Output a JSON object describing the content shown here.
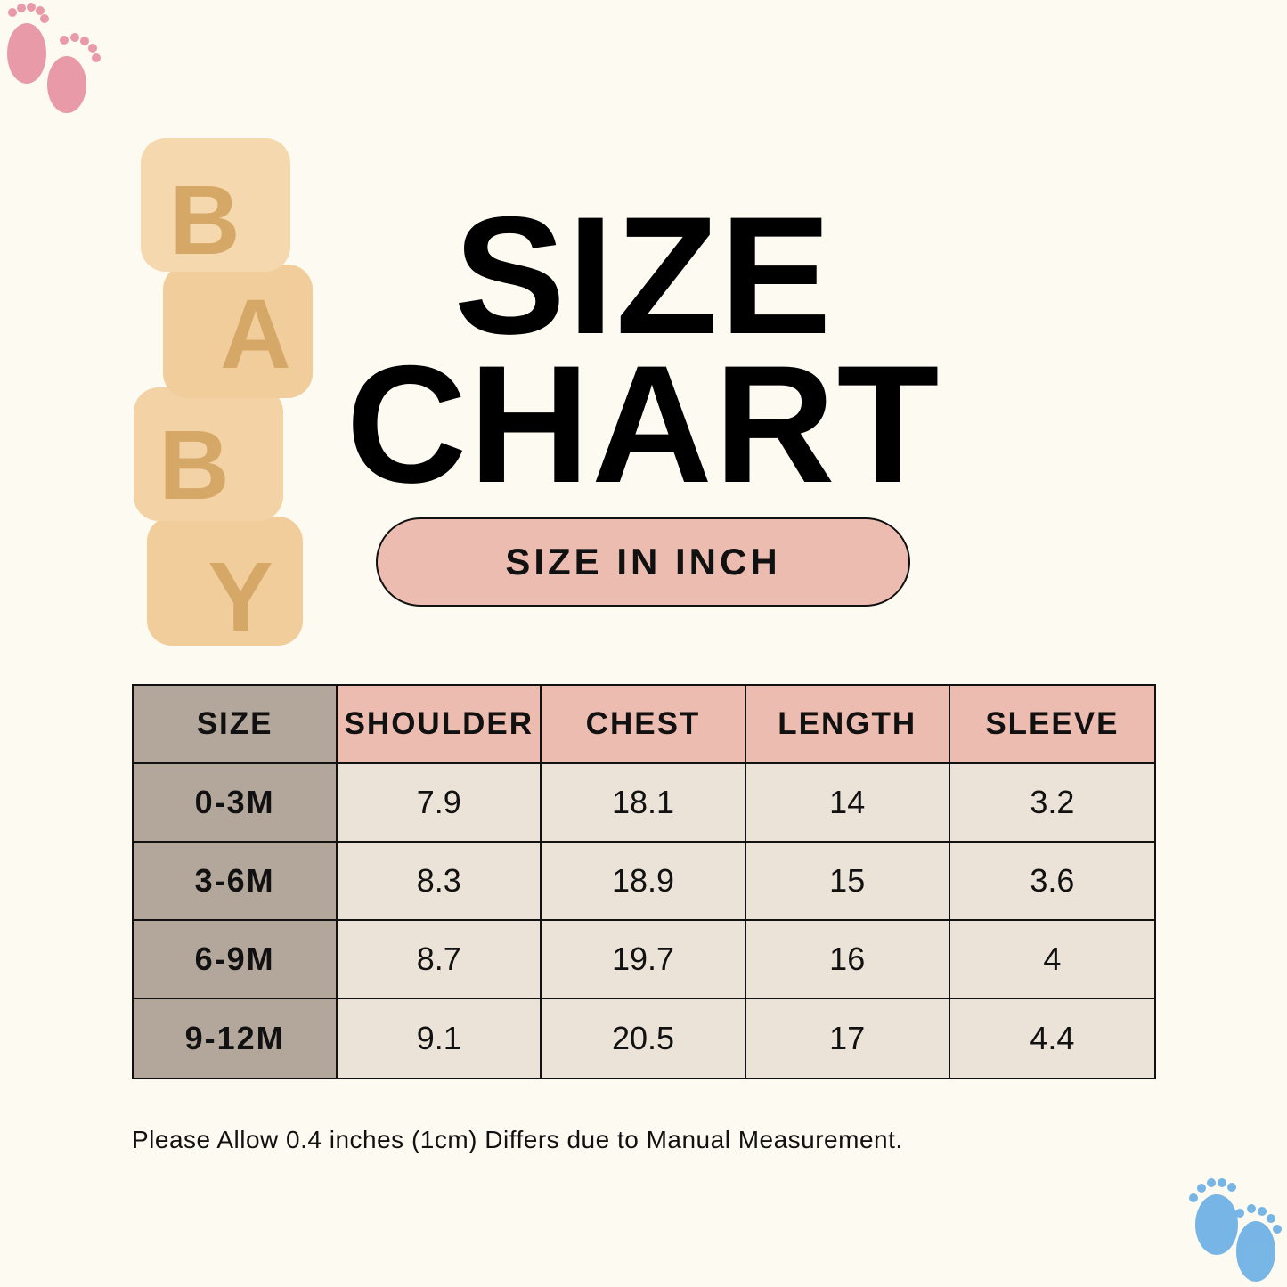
{
  "blocks": [
    "B",
    "A",
    "B",
    "Y"
  ],
  "title": [
    "SIZE",
    "CHART"
  ],
  "badge": "SIZE IN INCH",
  "table": {
    "header": [
      "SIZE",
      "SHOULDER",
      "CHEST",
      "LENGTH",
      "SLEEVE"
    ],
    "rows": [
      [
        "0-3M",
        "7.9",
        "18.1",
        "14",
        "3.2"
      ],
      [
        "3-6M",
        "8.3",
        "18.9",
        "15",
        "3.6"
      ],
      [
        "6-9M",
        "8.7",
        "19.7",
        "16",
        "4"
      ],
      [
        "9-12M",
        "9.1",
        "20.5",
        "17",
        "4.4"
      ]
    ]
  },
  "note": "Please Allow 0.4 inches (1cm) Differs due to Manual Measurement."
}
